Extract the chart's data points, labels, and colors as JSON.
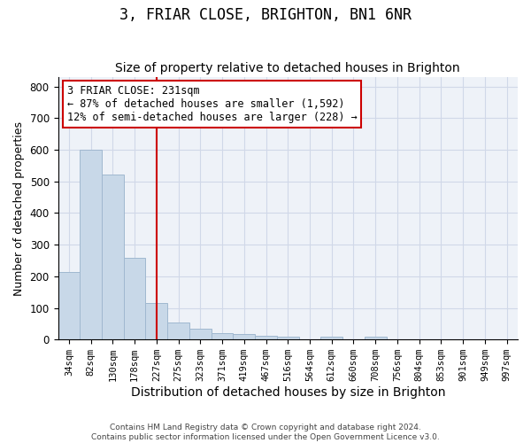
{
  "title": "3, FRIAR CLOSE, BRIGHTON, BN1 6NR",
  "subtitle": "Size of property relative to detached houses in Brighton",
  "xlabel": "Distribution of detached houses by size in Brighton",
  "ylabel": "Number of detached properties",
  "categories": [
    "34sqm",
    "82sqm",
    "130sqm",
    "178sqm",
    "227sqm",
    "275sqm",
    "323sqm",
    "371sqm",
    "419sqm",
    "467sqm",
    "516sqm",
    "564sqm",
    "612sqm",
    "660sqm",
    "708sqm",
    "756sqm",
    "804sqm",
    "853sqm",
    "901sqm",
    "949sqm",
    "997sqm"
  ],
  "values": [
    213,
    600,
    522,
    258,
    115,
    55,
    33,
    20,
    18,
    12,
    10,
    0,
    8,
    0,
    8,
    0,
    0,
    0,
    0,
    0,
    0
  ],
  "bar_color": "#c8d8e8",
  "bar_edge_color": "#a0b8d0",
  "red_line_index": 4,
  "annotation_title": "3 FRIAR CLOSE: 231sqm",
  "annotation_line1": "← 87% of detached houses are smaller (1,592)",
  "annotation_line2": "12% of semi-detached houses are larger (228) →",
  "annotation_box_color": "#ffffff",
  "annotation_box_edge": "#cc0000",
  "red_line_color": "#cc0000",
  "ylim": [
    0,
    830
  ],
  "grid_color": "#d0d8e8",
  "footer1": "Contains HM Land Registry data © Crown copyright and database right 2024.",
  "footer2": "Contains public sector information licensed under the Open Government Licence v3.0.",
  "title_fontsize": 12,
  "subtitle_fontsize": 10,
  "tick_fontsize": 7.5,
  "ylabel_fontsize": 9,
  "xlabel_fontsize": 10,
  "annotation_fontsize": 8.5
}
